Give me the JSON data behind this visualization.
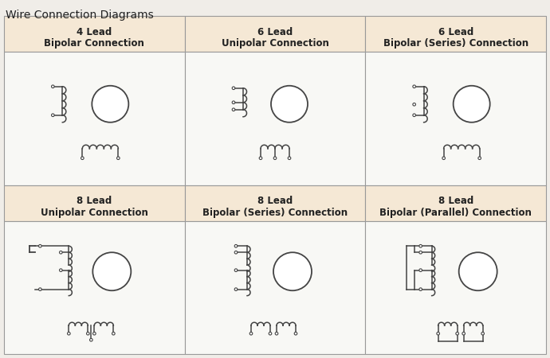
{
  "title": "Wire Connection Diagrams",
  "bg_color": "#f0ede8",
  "header_bg": "#f5e8d5",
  "cell_bg": "#f8f8f5",
  "border_color": "#999999",
  "line_color": "#444444",
  "title_fontsize": 10,
  "header_fontsize": 8.5,
  "headers": [
    [
      "4 Lead",
      "Bipolar Connection"
    ],
    [
      "6 Lead",
      "Unipolar Connection"
    ],
    [
      "6 Lead",
      "Bipolar (Series) Connection"
    ],
    [
      "8 Lead",
      "Unipolar Connection"
    ],
    [
      "8 Lead",
      "Bipolar (Series) Connection"
    ],
    [
      "8 Lead",
      "Bipolar (Parallel) Connection"
    ]
  ]
}
